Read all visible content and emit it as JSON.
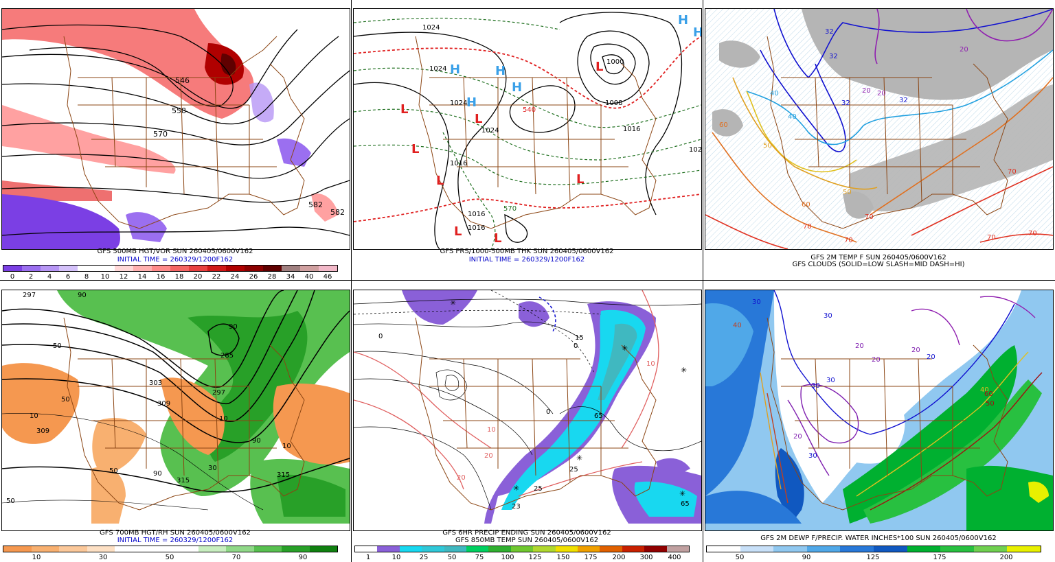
{
  "panels": [
    {
      "id": "p1",
      "captions": [
        "GFS 500MB HGT/VOR SUN 260405/0600V162",
        "INITIAL TIME = 260329/1200F162"
      ],
      "caption_styles": [
        "black",
        "blue"
      ],
      "labels": [
        "546",
        "558",
        "570",
        "582",
        "582"
      ],
      "legend_colors": [
        "#7b3fe4",
        "#9b6ff0",
        "#b796f5",
        "#d4c1fa",
        "#ffffff",
        "#ffffff",
        "#ffd8d8",
        "#ffb0b0",
        "#ff8a8a",
        "#f56464",
        "#e84040",
        "#d01818",
        "#b00000",
        "#8c0000",
        "#600000",
        "#a08080",
        "#d0a0a0",
        "#f2b8c8"
      ],
      "legend_ticks": [
        "0",
        "2",
        "4",
        "6",
        "8",
        "10",
        "12",
        "14",
        "16",
        "18",
        "20",
        "22",
        "24",
        "26",
        "28",
        "34",
        "40",
        "46"
      ]
    },
    {
      "id": "p2",
      "captions": [
        "GFS PRS/1000-500MB THK SUN 260405/0600V162",
        "INITIAL TIME = 260329/1200F162"
      ],
      "caption_styles": [
        "black",
        "blue"
      ],
      "labels": [
        "1024",
        "1024",
        "1024",
        "1024",
        "1016",
        "1016",
        "1016",
        "1008",
        "1000",
        "1016",
        "102",
        "540",
        "570"
      ],
      "symbols": [
        {
          "t": "H",
          "c": "#3aa0e8"
        },
        {
          "t": "H",
          "c": "#3aa0e8"
        },
        {
          "t": "H",
          "c": "#3aa0e8"
        },
        {
          "t": "H",
          "c": "#3aa0e8"
        },
        {
          "t": "H",
          "c": "#3aa0e8"
        },
        {
          "t": "H",
          "c": "#3aa0e8"
        },
        {
          "t": "L",
          "c": "#e02020"
        },
        {
          "t": "L",
          "c": "#e02020"
        },
        {
          "t": "L",
          "c": "#e02020"
        },
        {
          "t": "L",
          "c": "#e02020"
        },
        {
          "t": "L",
          "c": "#e02020"
        },
        {
          "t": "L",
          "c": "#e02020"
        },
        {
          "t": "L",
          "c": "#e02020"
        },
        {
          "t": "L",
          "c": "#e02020"
        }
      ]
    },
    {
      "id": "p3",
      "captions": [
        "GFS 2M TEMP F SUN 260405/0600V162",
        "GFS CLOUDS (SOLID=LOW SLASH=MID DASH=HI)"
      ],
      "caption_styles": [
        "black",
        "black"
      ],
      "labels": [
        "32",
        "32",
        "32",
        "32",
        "20",
        "20",
        "20",
        "40",
        "40",
        "50",
        "50",
        "60",
        "60",
        "70",
        "70",
        "70",
        "70",
        "70",
        "70"
      ]
    },
    {
      "id": "p4",
      "captions": [
        "GFS 700MB HGT/RH SUN 260405/0600V162",
        "INITIAL TIME = 260329/1200F162"
      ],
      "caption_styles": [
        "black",
        "blue"
      ],
      "labels": [
        "297",
        "285",
        "297",
        "303",
        "309",
        "309",
        "315",
        "315",
        "50",
        "50",
        "50",
        "50",
        "10",
        "10",
        "10",
        "30",
        "90",
        "90",
        "90",
        "90"
      ],
      "legend_colors": [
        "#f59850",
        "#f8b070",
        "#fbc89a",
        "#fde0c4",
        "#ffffff",
        "#ffffff",
        "#ffffff",
        "#c8eec0",
        "#90d888",
        "#58c050",
        "#28a028",
        "#108010"
      ],
      "legend_ticks": [
        "10",
        "30",
        "50",
        "70",
        "90"
      ]
    },
    {
      "id": "p5",
      "captions": [
        "GFS 6HR PRECIP ENDING SUN 260405/0600V162",
        "GFS 850MB TEMP SUN 260405/0600V162"
      ],
      "caption_styles": [
        "black",
        "black"
      ],
      "labels": [
        "0",
        "0",
        "0",
        "10",
        "10",
        "20",
        "20",
        "23",
        "25",
        "25",
        "65",
        "65",
        "15"
      ],
      "legend_colors": [
        "#ffffff",
        "#8a60d8",
        "#18d8f0",
        "#30c8d8",
        "#40b8c0",
        "#00d060",
        "#30b030",
        "#70c830",
        "#b0d830",
        "#f0e000",
        "#f0a000",
        "#e06000",
        "#c82000",
        "#900000",
        "#c0a0a0"
      ],
      "legend_ticks": [
        "1",
        "10",
        "25",
        "50",
        "75",
        "100",
        "125",
        "150",
        "175",
        "200",
        "300",
        "400"
      ]
    },
    {
      "id": "p6",
      "captions": [
        "GFS 2M DEWP F/PRECIP. WATER INCHES*100 SUN 260405/0600V162"
      ],
      "caption_styles": [
        "black"
      ],
      "labels": [
        "30",
        "30",
        "30",
        "30",
        "20",
        "20",
        "20",
        "20",
        "40",
        "40",
        "50",
        "60",
        "20",
        "30"
      ],
      "legend_colors": [
        "#ffffff",
        "#c8e0f8",
        "#90c8f0",
        "#50a8e8",
        "#2878d8",
        "#1058c0",
        "#00b030",
        "#28c040",
        "#70d050",
        "#e8f000"
      ],
      "legend_ticks": [
        "50",
        "90",
        "125",
        "175",
        "200"
      ]
    }
  ]
}
